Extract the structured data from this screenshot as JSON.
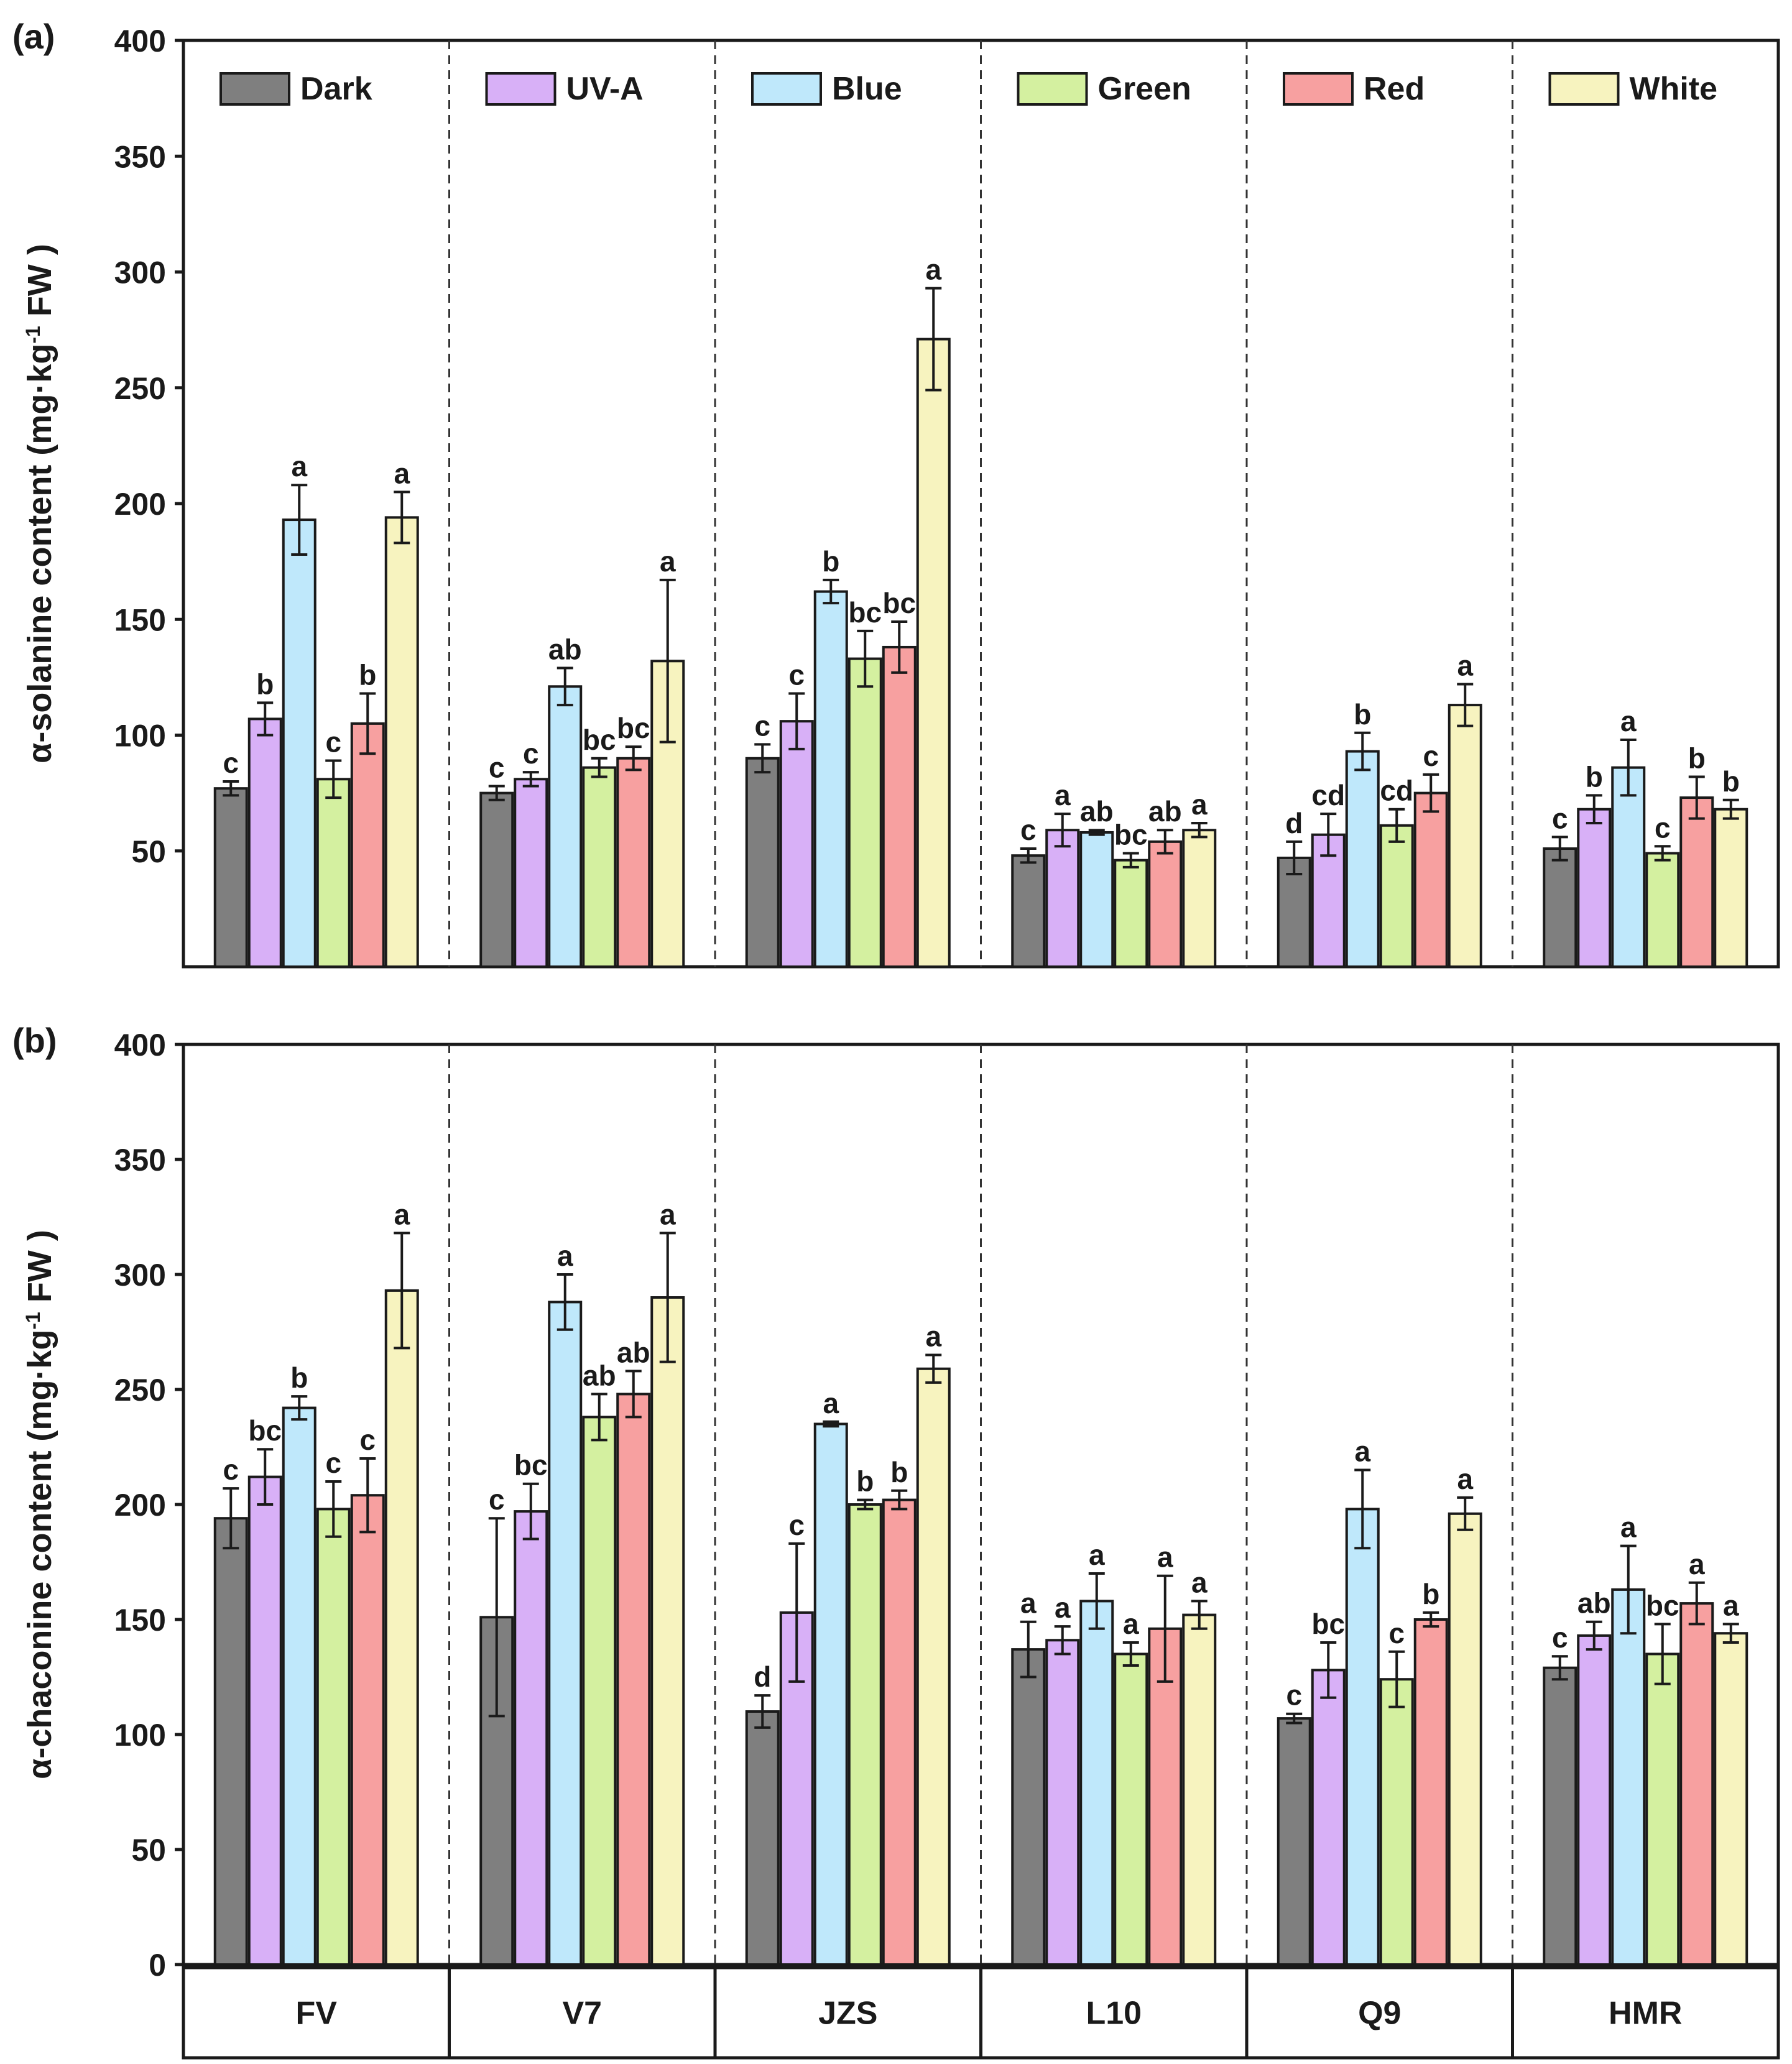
{
  "legend": [
    {
      "label": "Dark",
      "color": "#7f7f7f"
    },
    {
      "label": "UV-A",
      "color": "#d8b0f7"
    },
    {
      "label": "Blue",
      "color": "#bfe8fb"
    },
    {
      "label": "Green",
      "color": "#d4f0a0"
    },
    {
      "label": "Red",
      "color": "#f7a0a0"
    },
    {
      "label": "White",
      "color": "#f7f3bf"
    }
  ],
  "chart_data": [
    {
      "type": "bar",
      "panel": "(a)",
      "ylabel_main": "α-solanine content (mg·kg",
      "ylabel_sup": "-1",
      "ylabel_end": " FW )",
      "ylim": [
        0,
        400
      ],
      "yticks": [
        50,
        100,
        150,
        200,
        250,
        300,
        350,
        400
      ],
      "categories": [
        "FV",
        "V7",
        "JZS",
        "L10",
        "Q9",
        "HMR"
      ],
      "series": [
        {
          "name": "Dark",
          "values": [
            77,
            75,
            90,
            48,
            47,
            51
          ],
          "errors": [
            3,
            3,
            6,
            3,
            7,
            5
          ],
          "letters": [
            "c",
            "c",
            "c",
            "c",
            "d",
            "c"
          ]
        },
        {
          "name": "UV-A",
          "values": [
            107,
            81,
            106,
            59,
            57,
            68
          ],
          "errors": [
            7,
            3,
            12,
            7,
            9,
            6
          ],
          "letters": [
            "b",
            "c",
            "c",
            "a",
            "cd",
            "b"
          ]
        },
        {
          "name": "Blue",
          "values": [
            193,
            121,
            162,
            58,
            93,
            86
          ],
          "errors": [
            15,
            8,
            5,
            1,
            8,
            12
          ],
          "letters": [
            "a",
            "ab",
            "b",
            "ab",
            "b",
            "a"
          ]
        },
        {
          "name": "Green",
          "values": [
            81,
            86,
            133,
            46,
            61,
            49
          ],
          "errors": [
            8,
            4,
            12,
            3,
            7,
            3
          ],
          "letters": [
            "c",
            "bc",
            "bc",
            "bc",
            "cd",
            "c"
          ]
        },
        {
          "name": "Red",
          "values": [
            105,
            90,
            138,
            54,
            75,
            73
          ],
          "errors": [
            13,
            5,
            11,
            5,
            8,
            9
          ],
          "letters": [
            "b",
            "bc",
            "bc",
            "ab",
            "c",
            "b"
          ]
        },
        {
          "name": "White",
          "values": [
            194,
            132,
            271,
            59,
            113,
            68
          ],
          "errors": [
            11,
            35,
            22,
            3,
            9,
            4
          ],
          "letters": [
            "a",
            "a",
            "a",
            "a",
            "a",
            "b"
          ]
        }
      ]
    },
    {
      "type": "bar",
      "panel": "(b)",
      "ylabel_main": "α-chaconine content (mg·kg",
      "ylabel_sup": "-1",
      "ylabel_end": " FW )",
      "ylim": [
        0,
        400
      ],
      "yticks": [
        0,
        50,
        100,
        150,
        200,
        250,
        300,
        350,
        400
      ],
      "categories": [
        "FV",
        "V7",
        "JZS",
        "L10",
        "Q9",
        "HMR"
      ],
      "series": [
        {
          "name": "Dark",
          "values": [
            194,
            151,
            110,
            137,
            107,
            129
          ],
          "errors": [
            13,
            43,
            7,
            12,
            2,
            5
          ],
          "letters": [
            "c",
            "c",
            "d",
            "a",
            "c",
            "c"
          ]
        },
        {
          "name": "UV-A",
          "values": [
            212,
            197,
            153,
            141,
            128,
            143
          ],
          "errors": [
            12,
            12,
            30,
            6,
            12,
            6
          ],
          "letters": [
            "bc",
            "bc",
            "c",
            "a",
            "bc",
            "ab"
          ]
        },
        {
          "name": "Blue",
          "values": [
            242,
            288,
            235,
            158,
            198,
            163
          ],
          "errors": [
            5,
            12,
            1,
            12,
            17,
            19
          ],
          "letters": [
            "b",
            "a",
            "a",
            "a",
            "a",
            "a"
          ]
        },
        {
          "name": "Green",
          "values": [
            198,
            238,
            200,
            135,
            124,
            135
          ],
          "errors": [
            12,
            10,
            2,
            5,
            12,
            13
          ],
          "letters": [
            "c",
            "ab",
            "b",
            "a",
            "c",
            "bc"
          ]
        },
        {
          "name": "Red",
          "values": [
            204,
            248,
            202,
            146,
            150,
            157
          ],
          "errors": [
            16,
            10,
            4,
            23,
            3,
            9
          ],
          "letters": [
            "c",
            "ab",
            "b",
            "a",
            "b",
            "a"
          ]
        },
        {
          "name": "White",
          "values": [
            293,
            290,
            259,
            152,
            196,
            144
          ],
          "errors": [
            25,
            28,
            6,
            6,
            7,
            4
          ],
          "letters": [
            "a",
            "a",
            "a",
            "a",
            "a",
            "a"
          ]
        }
      ]
    }
  ]
}
